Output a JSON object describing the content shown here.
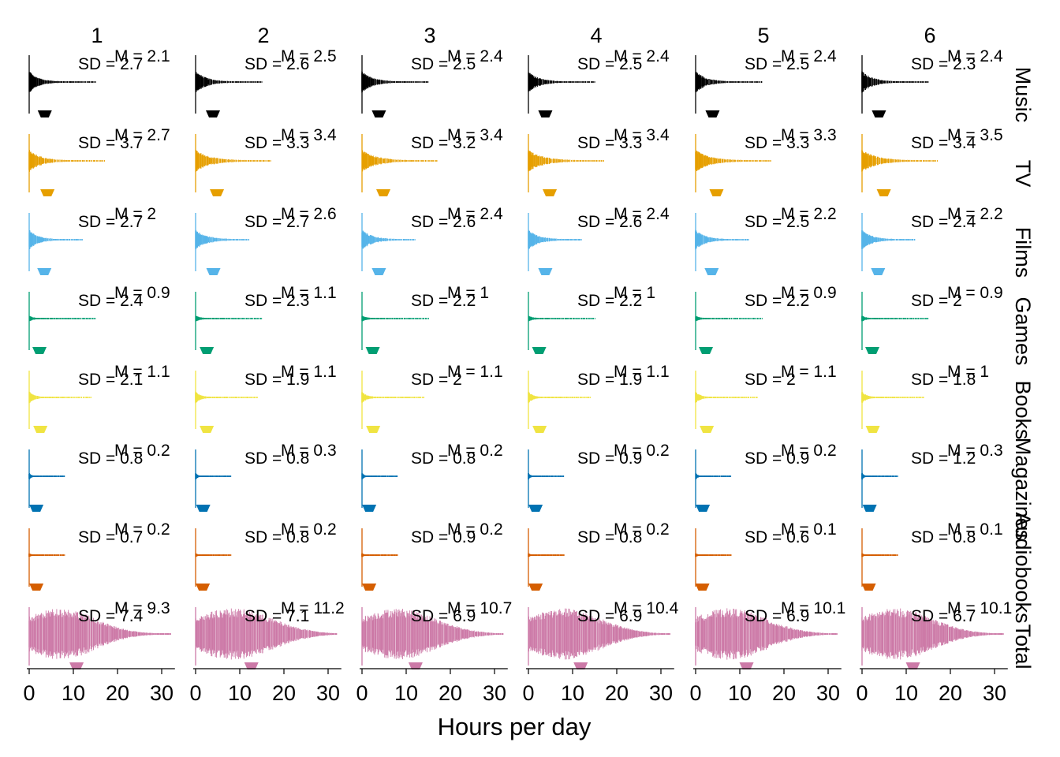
{
  "chart_data": {
    "type": "violin-dotplot-grid",
    "xlabel": "Hours per day",
    "xlim": [
      0,
      33
    ],
    "xticks": [
      0,
      10,
      20,
      30
    ],
    "grid": false,
    "columns": [
      "1",
      "2",
      "3",
      "4",
      "5",
      "6"
    ],
    "rows": [
      {
        "label": "Music",
        "color": "#000000",
        "spread": 15,
        "width": 0.42,
        "means": [
          2.1,
          2.5,
          2.4,
          2.4,
          2.4,
          2.4
        ],
        "sds": [
          "2.7",
          "2.6",
          "2.5",
          "2.5",
          "2.5",
          "2.3"
        ],
        "m_labels": [
          "2.1",
          "2.5",
          "2.4",
          "2.4",
          "2.4",
          "2.4"
        ]
      },
      {
        "label": "TV",
        "color": "#E69F00",
        "spread": 17,
        "width": 0.42,
        "means": [
          2.7,
          3.4,
          3.4,
          3.4,
          3.3,
          3.5
        ],
        "sds": [
          "3.7",
          "3.3",
          "3.2",
          "3.3",
          "3.3",
          "3.4"
        ],
        "m_labels": [
          "2.7",
          "3.4",
          "3.4",
          "3.4",
          "3.3",
          "3.5"
        ]
      },
      {
        "label": "Films",
        "color": "#56B4E9",
        "spread": 12,
        "width": 0.38,
        "means": [
          2,
          2.6,
          2.4,
          2.4,
          2.2,
          2.2
        ],
        "sds": [
          "2.7",
          "2.7",
          "2.6",
          "2.6",
          "2.5",
          "2.4"
        ],
        "m_labels": [
          "2",
          "2.6",
          "2.4",
          "2.4",
          "2.2",
          "2.2"
        ]
      },
      {
        "label": "Games",
        "color": "#009E73",
        "spread": 15,
        "width": 0.1,
        "means": [
          0.9,
          1.1,
          1,
          1,
          0.9,
          0.9
        ],
        "sds": [
          "2.4",
          "2.3",
          "2.2",
          "2.2",
          "2.2",
          "2"
        ],
        "m_labels": [
          "0.9",
          "1.1",
          "1",
          "1",
          "0.9",
          "0.9"
        ]
      },
      {
        "label": "Books",
        "color": "#F0E442",
        "spread": 14,
        "width": 0.22,
        "means": [
          1.1,
          1.1,
          1.1,
          1.1,
          1.1,
          1
        ],
        "sds": [
          "2.1",
          "1.9",
          "2",
          "1.9",
          "2",
          "1.8"
        ],
        "m_labels": [
          "1.1",
          "1.1",
          "1.1",
          "1.1",
          "1.1",
          "1"
        ]
      },
      {
        "label": "Magazines",
        "color": "#0072B2",
        "spread": 8,
        "width": 0.12,
        "means": [
          0.2,
          0.3,
          0.2,
          0.2,
          0.2,
          0.3
        ],
        "sds": [
          "0.8",
          "0.8",
          "0.8",
          "0.9",
          "0.9",
          "1.2"
        ],
        "m_labels": [
          "0.2",
          "0.3",
          "0.2",
          "0.2",
          "0.2",
          "0.3"
        ]
      },
      {
        "label": "Audiobooks",
        "color": "#D55E00",
        "spread": 8,
        "width": 0.06,
        "means": [
          0.2,
          0.2,
          0.2,
          0.2,
          0.1,
          0.1
        ],
        "sds": [
          "0.7",
          "0.8",
          "0.9",
          "0.8",
          "0.6",
          "0.8"
        ],
        "m_labels": [
          "0.2",
          "0.2",
          "0.2",
          "0.2",
          "0.1",
          "0.1"
        ]
      },
      {
        "label": "Total",
        "color": "#CC79A7",
        "spread": 32,
        "width": 0.95,
        "means": [
          9.3,
          11.2,
          10.7,
          10.4,
          10.1,
          10.1
        ],
        "sds": [
          "7.4",
          "7.1",
          "6.9",
          "6.9",
          "6.9",
          "6.7"
        ],
        "m_labels": [
          "9.3",
          "11.2",
          "10.7",
          "10.4",
          "10.1",
          "10.1"
        ]
      }
    ]
  }
}
